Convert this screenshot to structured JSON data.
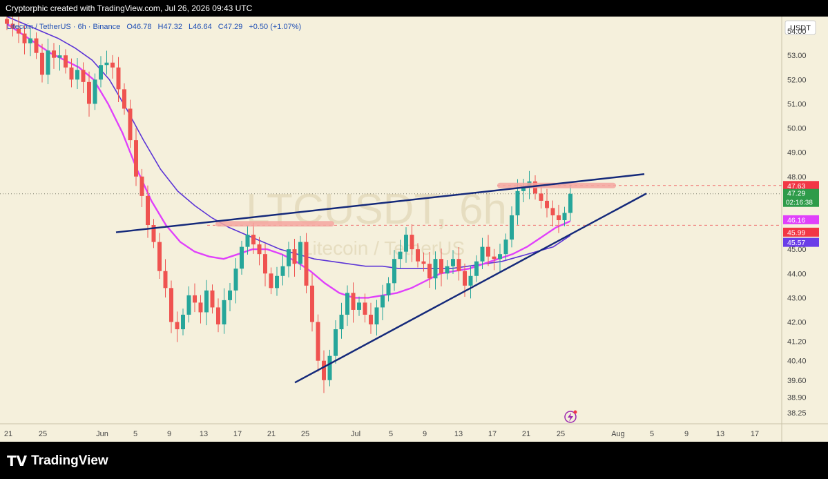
{
  "header": {
    "attribution": "Cryptorphic created with TradingView.com, Jul 26, 2026 09:43 UTC"
  },
  "footer": {
    "logo_text": "TradingView",
    "logo_icon": "tradingview-logo-icon"
  },
  "symbol_bar": {
    "name": "Litecoin / TetherUS · 6h · Binance",
    "o_label": "O",
    "o_value": "46.78",
    "h_label": "H",
    "h_value": "47.32",
    "l_label": "L",
    "l_value": "46.64",
    "c_label": "C",
    "c_value": "47.29",
    "change": "+0.50 (+1.07%)"
  },
  "watermark": {
    "symbol": "LTCUSDT, 6h",
    "name": "Litecoin / TetherUS"
  },
  "chart_data": {
    "type": "candlestick",
    "currency": "USDT",
    "y_ticks": [
      "54.00",
      "53.00",
      "52.00",
      "51.00",
      "50.00",
      "49.00",
      "48.00",
      "45.00",
      "44.00",
      "43.00",
      "42.00",
      "41.20",
      "40.40",
      "39.60",
      "38.90",
      "38.25"
    ],
    "x_ticks": [
      "21",
      "25",
      "Jun",
      "5",
      "9",
      "13",
      "17",
      "21",
      "25",
      "Jul",
      "5",
      "9",
      "13",
      "17",
      "21",
      "25",
      "Aug",
      "5",
      "9",
      "13",
      "17"
    ],
    "ylim": [
      37.8,
      54.6
    ],
    "price_labels": [
      {
        "value": 47.63,
        "text": "47.63",
        "color": "#f23645",
        "role": "resistance"
      },
      {
        "value": 47.29,
        "text": "47.29",
        "countdown": "02:16:38",
        "color": "#2e9b4a",
        "role": "last-price"
      },
      {
        "value": 46.16,
        "text": "46.16",
        "color": "#e040fb",
        "role": "ma-fast"
      },
      {
        "value": 45.99,
        "text": "45.99",
        "color": "#f23645",
        "role": "support"
      },
      {
        "value": 45.57,
        "text": "45.57",
        "color": "#6a3de8",
        "role": "ma-slow"
      }
    ],
    "candles_approx": [
      54.3,
      54.1,
      53.9,
      53.5,
      53.7,
      53.1,
      52.2,
      53.2,
      52.9,
      53.0,
      52.5,
      52.0,
      52.4,
      51.9,
      51.0,
      52.0,
      52.6,
      52.7,
      52.5,
      51.6,
      50.8,
      49.5,
      48.0,
      47.2,
      46.0,
      45.3,
      44.1,
      43.4,
      42.0,
      41.7,
      42.3,
      43.1,
      42.8,
      42.4,
      43.3,
      42.6,
      41.9,
      42.9,
      43.3,
      44.2,
      45.1,
      45.6,
      45.2,
      44.8,
      44.0,
      43.4,
      43.9,
      44.3,
      45.0,
      44.4,
      45.3,
      43.5,
      42.0,
      40.4,
      39.6,
      40.6,
      41.7,
      42.3,
      43.2,
      42.5,
      42.8,
      42.3,
      41.9,
      42.6,
      43.1,
      43.6,
      44.6,
      44.9,
      45.6,
      45.0,
      44.5,
      44.4,
      43.8,
      44.6,
      44.0,
      44.3,
      44.6,
      44.1,
      43.5,
      43.9,
      44.5,
      45.1,
      44.7,
      44.6,
      44.8,
      45.4,
      46.4,
      47.4,
      47.6,
      47.8,
      47.3,
      47.0,
      46.7,
      46.4,
      46.2,
      46.5,
      47.29
    ],
    "ma_fast": [
      54.3,
      53.9,
      53.5,
      53.1,
      52.8,
      52.5,
      52.0,
      51.0,
      49.8,
      48.3,
      47.0,
      46.0,
      45.3,
      44.9,
      44.7,
      44.6,
      44.8,
      45.0,
      45.0,
      44.8,
      44.5,
      44.1,
      43.6,
      43.2,
      43.0,
      43.0,
      43.1,
      43.2,
      43.4,
      43.7,
      44.0,
      44.1,
      44.2,
      44.4,
      44.6,
      44.8,
      45.1,
      45.5,
      45.9,
      46.16
    ],
    "ma_slow": [
      54.6,
      54.3,
      54.0,
      53.7,
      53.3,
      52.8,
      52.0,
      50.8,
      49.5,
      48.3,
      47.4,
      46.8,
      46.3,
      45.9,
      45.6,
      45.3,
      45.0,
      44.8,
      44.6,
      44.5,
      44.4,
      44.3,
      44.3,
      44.2,
      44.2,
      44.2,
      44.2,
      44.3,
      44.4,
      44.5,
      44.7,
      44.9,
      45.1,
      45.57
    ],
    "trendlines": [
      {
        "name": "upper",
        "from": [
          45.7,
          "Jun 3"
        ],
        "to": [
          48.1,
          "Aug 3"
        ]
      },
      {
        "name": "lower",
        "from": [
          39.5,
          "Jun 23"
        ],
        "to": [
          47.3,
          "Aug 3"
        ]
      }
    ],
    "zones": [
      {
        "name": "resistance-zone",
        "value": 47.63
      },
      {
        "name": "mid-zone",
        "value": 46.05
      }
    ]
  }
}
